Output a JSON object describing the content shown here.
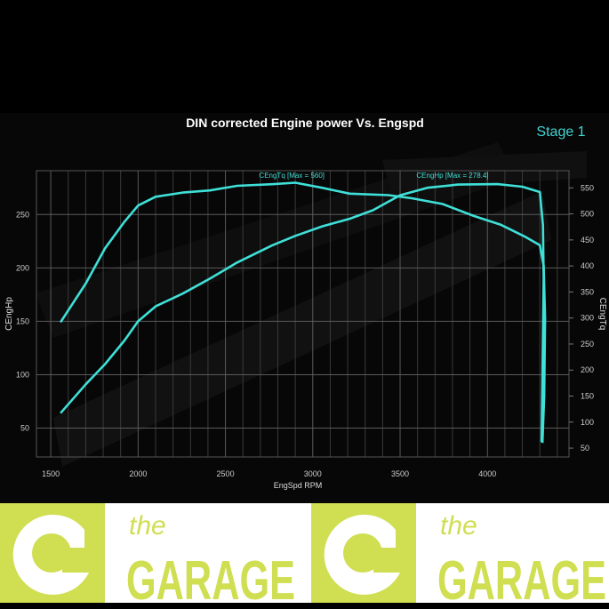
{
  "chart_data": {
    "type": "line",
    "title": "DIN corrected Engine power Vs. Engspd",
    "badge": "Stage 1",
    "xlabel": "EngSpd RPM",
    "ylabel_left": "CEngHp",
    "ylabel_right": "CEngTq",
    "xlim": [
      1418,
      4467
    ],
    "ylim_left": [
      23,
      291
    ],
    "ylim_right": [
      33,
      583
    ],
    "x_ticks": [
      1500,
      2000,
      2500,
      3000,
      3500,
      4000
    ],
    "y_left_ticks": [
      50,
      100,
      150,
      200,
      250
    ],
    "y_right_ticks": [
      50,
      100,
      150,
      200,
      250,
      300,
      350,
      400,
      450,
      500,
      550
    ],
    "grid": true,
    "line_color": "#3fe0d8",
    "series": [
      {
        "name": "CEngTq",
        "label": "CEngTq [Max = 560]",
        "axis": "right",
        "x": [
          1556,
          1700,
          1811,
          1922,
          2000,
          2100,
          2256,
          2411,
          2567,
          2767,
          2900,
          3056,
          3211,
          3433,
          3567,
          3744,
          3922,
          4078,
          4211,
          4300,
          4322,
          4330,
          4325,
          4315
        ],
        "y": [
          292,
          366,
          434,
          485,
          516,
          533,
          541,
          545,
          554,
          557,
          560,
          550,
          539,
          536,
          530,
          519,
          496,
          479,
          457,
          440,
          400,
          300,
          150,
          60
        ]
      },
      {
        "name": "CEngHp",
        "label": "CEngHp [Max = 278.4]",
        "axis": "left",
        "x": [
          1556,
          1700,
          1811,
          1922,
          2000,
          2100,
          2256,
          2411,
          2567,
          2767,
          2900,
          3056,
          3211,
          3344,
          3500,
          3656,
          3833,
          4056,
          4200,
          4300,
          4318,
          4322,
          4316,
          4310
        ],
        "y": [
          64,
          91,
          110,
          132,
          150,
          164,
          176,
          190,
          205,
          221,
          230,
          239,
          246,
          254,
          268,
          275,
          278,
          278.4,
          276,
          271,
          240,
          190,
          110,
          37
        ]
      }
    ]
  },
  "footer": {
    "logo_text_small": "the",
    "logo_text_large": "GARAGE",
    "logo_color": "#d0de52"
  }
}
